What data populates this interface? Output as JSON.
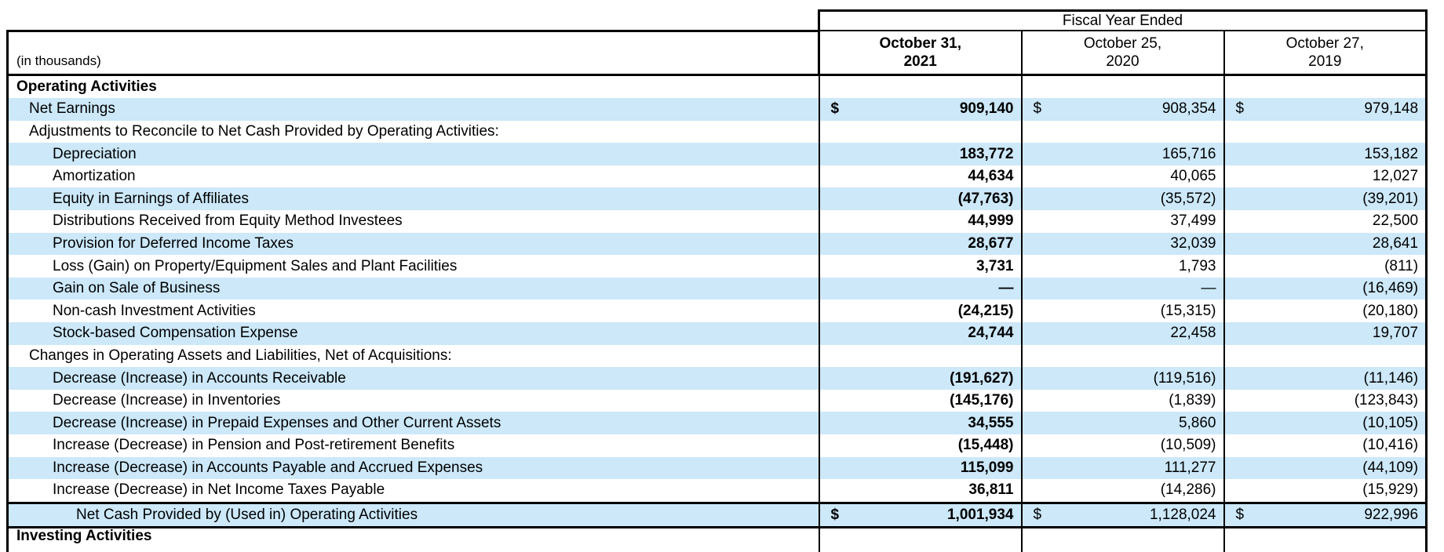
{
  "header": {
    "fiscal_year_header": "Fiscal Year Ended",
    "units_label": "(in thousands)",
    "columns": [
      {
        "line1": "October 31,",
        "line2": "2021",
        "bold": true
      },
      {
        "line1": "October 25,",
        "line2": "2020",
        "bold": false
      },
      {
        "line1": "October 27,",
        "line2": "2019",
        "bold": false
      }
    ]
  },
  "table": {
    "currency_symbol": "$",
    "rows": [
      {
        "label": "Operating Activities",
        "indent": 0,
        "bold": true,
        "shaded": false,
        "dollar": false,
        "total": false,
        "values": [
          "",
          "",
          ""
        ]
      },
      {
        "label": "Net Earnings",
        "indent": 1,
        "bold": false,
        "shaded": true,
        "dollar": true,
        "total": false,
        "values": [
          "909,140",
          "908,354",
          "979,148"
        ]
      },
      {
        "label": "Adjustments to Reconcile to Net Cash Provided by Operating Activities:",
        "indent": 1,
        "bold": false,
        "shaded": false,
        "dollar": false,
        "total": false,
        "values": [
          "",
          "",
          ""
        ]
      },
      {
        "label": "Depreciation",
        "indent": 2,
        "bold": false,
        "shaded": true,
        "dollar": false,
        "total": false,
        "values": [
          "183,772",
          "165,716",
          "153,182"
        ]
      },
      {
        "label": "Amortization",
        "indent": 2,
        "bold": false,
        "shaded": false,
        "dollar": false,
        "total": false,
        "values": [
          "44,634",
          "40,065",
          "12,027"
        ]
      },
      {
        "label": "Equity in Earnings of Affiliates",
        "indent": 2,
        "bold": false,
        "shaded": true,
        "dollar": false,
        "total": false,
        "values": [
          "(47,763)",
          "(35,572)",
          "(39,201)"
        ]
      },
      {
        "label": "Distributions Received from Equity Method Investees",
        "indent": 2,
        "bold": false,
        "shaded": false,
        "dollar": false,
        "total": false,
        "values": [
          "44,999",
          "37,499",
          "22,500"
        ]
      },
      {
        "label": "Provision for Deferred Income Taxes",
        "indent": 2,
        "bold": false,
        "shaded": true,
        "dollar": false,
        "total": false,
        "values": [
          "28,677",
          "32,039",
          "28,641"
        ]
      },
      {
        "label": "Loss (Gain) on Property/Equipment Sales and Plant Facilities",
        "indent": 2,
        "bold": false,
        "shaded": false,
        "dollar": false,
        "total": false,
        "values": [
          "3,731",
          "1,793",
          "(811)"
        ]
      },
      {
        "label": "Gain on Sale of Business",
        "indent": 2,
        "bold": false,
        "shaded": true,
        "dollar": false,
        "total": false,
        "values": [
          "—",
          "—",
          "(16,469)"
        ]
      },
      {
        "label": "Non-cash Investment Activities",
        "indent": 2,
        "bold": false,
        "shaded": false,
        "dollar": false,
        "total": false,
        "values": [
          "(24,215)",
          "(15,315)",
          "(20,180)"
        ]
      },
      {
        "label": "Stock-based Compensation Expense",
        "indent": 2,
        "bold": false,
        "shaded": true,
        "dollar": false,
        "total": false,
        "values": [
          "24,744",
          "22,458",
          "19,707"
        ]
      },
      {
        "label": "Changes in Operating Assets and Liabilities, Net of Acquisitions:",
        "indent": 1,
        "bold": false,
        "shaded": false,
        "dollar": false,
        "total": false,
        "values": [
          "",
          "",
          ""
        ]
      },
      {
        "label": "Decrease (Increase) in Accounts Receivable",
        "indent": 2,
        "bold": false,
        "shaded": true,
        "dollar": false,
        "total": false,
        "values": [
          "(191,627)",
          "(119,516)",
          "(11,146)"
        ]
      },
      {
        "label": "Decrease (Increase) in Inventories",
        "indent": 2,
        "bold": false,
        "shaded": false,
        "dollar": false,
        "total": false,
        "values": [
          "(145,176)",
          "(1,839)",
          "(123,843)"
        ]
      },
      {
        "label": "Decrease (Increase) in Prepaid Expenses and Other Current Assets",
        "indent": 2,
        "bold": false,
        "shaded": true,
        "dollar": false,
        "total": false,
        "values": [
          "34,555",
          "5,860",
          "(10,105)"
        ]
      },
      {
        "label": "Increase (Decrease) in Pension and Post-retirement Benefits",
        "indent": 2,
        "bold": false,
        "shaded": false,
        "dollar": false,
        "total": false,
        "values": [
          "(15,448)",
          "(10,509)",
          "(10,416)"
        ]
      },
      {
        "label": "Increase (Decrease) in Accounts Payable and Accrued Expenses",
        "indent": 2,
        "bold": false,
        "shaded": true,
        "dollar": false,
        "total": false,
        "values": [
          "115,099",
          "111,277",
          "(44,109)"
        ]
      },
      {
        "label": "Increase (Decrease) in Net Income Taxes Payable",
        "indent": 2,
        "bold": false,
        "shaded": false,
        "dollar": false,
        "total": false,
        "values": [
          "36,811",
          "(14,286)",
          "(15,929)"
        ]
      },
      {
        "label": "Net Cash Provided by (Used in) Operating Activities",
        "indent": 3,
        "bold": false,
        "shaded": true,
        "dollar": true,
        "total": true,
        "values": [
          "1,001,934",
          "1,128,024",
          "922,996"
        ]
      }
    ],
    "partial_row": {
      "label": "Investing Activities",
      "indent": 0,
      "bold": true
    }
  },
  "colors": {
    "row_band": "#cce8f9",
    "border": "#000000"
  }
}
